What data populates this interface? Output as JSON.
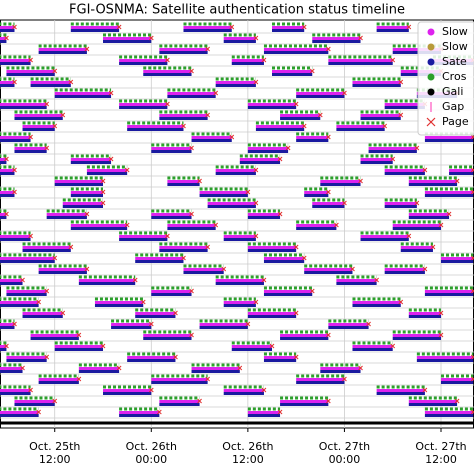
{
  "chart_data": {
    "type": "timeline",
    "title": "FGI-OSNMA: Satellite authentication status timeline",
    "xlim": [
      29.2,
      88.1
    ],
    "xticks": [
      {
        "value": 36,
        "label": "Oct. 25th\n12:00"
      },
      {
        "value": 48,
        "label": "Oct. 26th\n00:00"
      },
      {
        "value": 60,
        "label": "Oct. 26th\n12:00"
      },
      {
        "value": 72,
        "label": "Oct. 27th\n00:00"
      },
      {
        "value": 84,
        "label": "Oct. 27th\n12:00"
      }
    ],
    "grid": true,
    "legend": "upper right",
    "series": [
      {
        "name": "Slow",
        "color": "#dd22ee",
        "marker": "o"
      },
      {
        "name": "Slow",
        "color": "#b89a3a",
        "marker": "o"
      },
      {
        "name": "Sate",
        "color": "#1a1aa0",
        "marker": "o"
      },
      {
        "name": "Cros",
        "color": "#2ca02c",
        "marker": "o"
      },
      {
        "name": "Gali",
        "color": "#000000",
        "marker": "o"
      },
      {
        "name": "Gap",
        "color": "#ff77cc",
        "marker": "|"
      },
      {
        "name": "Page",
        "color": "#e03030",
        "marker": "x"
      }
    ],
    "rows": [
      [
        [
          29,
          31
        ],
        [
          38,
          44
        ],
        [
          52,
          58
        ],
        [
          63,
          67
        ],
        [
          76,
          80
        ]
      ],
      [
        [
          29,
          30
        ],
        [
          42,
          48
        ],
        [
          57,
          61
        ],
        [
          68,
          74
        ]
      ],
      [
        [
          34,
          40
        ],
        [
          49,
          55
        ],
        [
          62,
          70
        ],
        [
          78,
          84
        ]
      ],
      [
        [
          29,
          33
        ],
        [
          44,
          50
        ],
        [
          58,
          62
        ],
        [
          70,
          78
        ],
        [
          83,
          88
        ]
      ],
      [
        [
          30,
          36
        ],
        [
          47,
          53
        ],
        [
          63,
          68
        ],
        [
          79,
          84
        ]
      ],
      [
        [
          29,
          31
        ],
        [
          33,
          38
        ],
        [
          56,
          61
        ],
        [
          73,
          79
        ]
      ],
      [
        [
          36,
          43
        ],
        [
          50,
          56
        ],
        [
          66,
          72
        ],
        [
          81,
          86
        ]
      ],
      [
        [
          29,
          35
        ],
        [
          44,
          50
        ],
        [
          60,
          66
        ],
        [
          77,
          82
        ]
      ],
      [
        [
          31,
          37
        ],
        [
          49,
          55
        ],
        [
          64,
          69
        ],
        [
          74,
          79
        ]
      ],
      [
        [
          32,
          36
        ],
        [
          45,
          52
        ],
        [
          61,
          67
        ],
        [
          71,
          77
        ]
      ],
      [
        [
          29,
          33
        ],
        [
          53,
          58
        ],
        [
          66,
          70
        ],
        [
          82,
          88
        ]
      ],
      [
        [
          31,
          35
        ],
        [
          48,
          53
        ],
        [
          60,
          65
        ],
        [
          75,
          81
        ]
      ],
      [
        [
          29,
          30
        ],
        [
          38,
          43
        ],
        [
          59,
          64
        ],
        [
          74,
          78
        ]
      ],
      [
        [
          29,
          31
        ],
        [
          40,
          45
        ],
        [
          56,
          61
        ],
        [
          77,
          82
        ],
        [
          85,
          88
        ]
      ],
      [
        [
          36,
          42
        ],
        [
          50,
          54
        ],
        [
          69,
          74
        ],
        [
          80,
          86
        ]
      ],
      [
        [
          29,
          31
        ],
        [
          38,
          42
        ],
        [
          54,
          60
        ],
        [
          67,
          70
        ],
        [
          82,
          88
        ]
      ],
      [
        [
          37,
          42
        ],
        [
          55,
          61
        ],
        [
          68,
          72
        ],
        [
          77,
          81
        ]
      ],
      [
        [
          29,
          30
        ],
        [
          35,
          40
        ],
        [
          48,
          53
        ],
        [
          60,
          64
        ],
        [
          80,
          85
        ]
      ],
      [
        [
          38,
          45
        ],
        [
          50,
          56
        ],
        [
          66,
          71
        ],
        [
          78,
          84
        ]
      ],
      [
        [
          29,
          33
        ],
        [
          44,
          50
        ],
        [
          57,
          61
        ],
        [
          74,
          80
        ]
      ],
      [
        [
          32,
          38
        ],
        [
          49,
          55
        ],
        [
          60,
          66
        ],
        [
          79,
          83
        ]
      ],
      [
        [
          29,
          36
        ],
        [
          46,
          52
        ],
        [
          62,
          67
        ],
        [
          84,
          88
        ]
      ],
      [
        [
          34,
          40
        ],
        [
          52,
          57
        ],
        [
          67,
          73
        ],
        [
          77,
          82
        ]
      ],
      [
        [
          29,
          32
        ],
        [
          39,
          46
        ],
        [
          56,
          62
        ],
        [
          71,
          76
        ]
      ],
      [
        [
          30,
          35
        ],
        [
          48,
          53
        ],
        [
          62,
          68
        ],
        [
          82,
          88
        ]
      ],
      [
        [
          29,
          34
        ],
        [
          41,
          47
        ],
        [
          57,
          61
        ],
        [
          73,
          79
        ]
      ],
      [
        [
          32,
          37
        ],
        [
          46,
          51
        ],
        [
          60,
          66
        ],
        [
          80,
          84
        ]
      ],
      [
        [
          29,
          31
        ],
        [
          43,
          48
        ],
        [
          54,
          60
        ],
        [
          70,
          75
        ]
      ],
      [
        [
          33,
          39
        ],
        [
          47,
          53
        ],
        [
          64,
          70
        ],
        [
          78,
          84
        ]
      ],
      [
        [
          29,
          30
        ],
        [
          36,
          42
        ],
        [
          58,
          63
        ],
        [
          73,
          78
        ]
      ],
      [
        [
          30,
          35
        ],
        [
          45,
          51
        ],
        [
          62,
          66
        ],
        [
          81,
          88
        ]
      ],
      [
        [
          29,
          32
        ],
        [
          39,
          44
        ],
        [
          53,
          59
        ],
        [
          69,
          74
        ]
      ],
      [
        [
          34,
          39
        ],
        [
          48,
          55
        ],
        [
          66,
          72
        ],
        [
          84,
          88
        ]
      ],
      [
        [
          29,
          33
        ],
        [
          42,
          48
        ],
        [
          57,
          62
        ],
        [
          76,
          82
        ]
      ],
      [
        [
          31,
          36
        ],
        [
          49,
          54
        ],
        [
          64,
          70
        ],
        [
          80,
          86
        ]
      ],
      [
        [
          29,
          34
        ],
        [
          44,
          49
        ],
        [
          60,
          64
        ],
        [
          82,
          88
        ]
      ]
    ]
  }
}
